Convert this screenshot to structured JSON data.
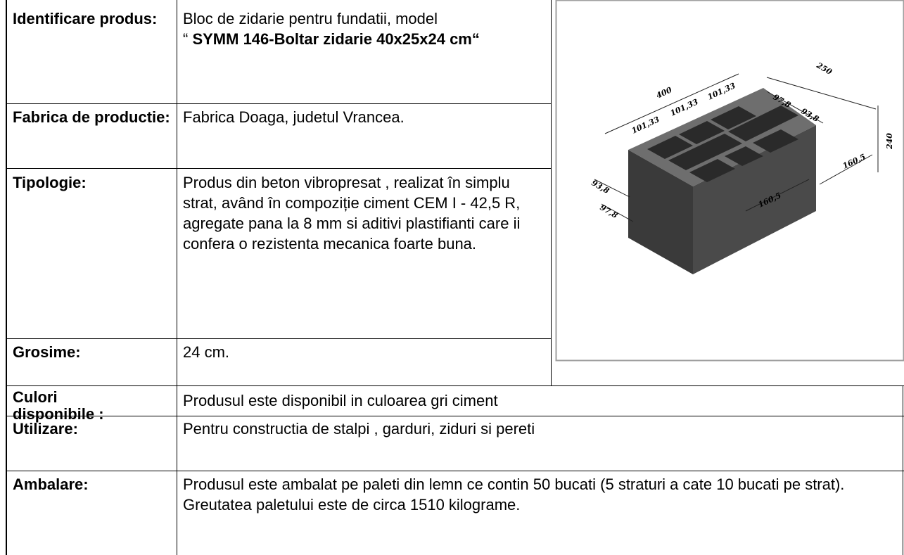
{
  "table": {
    "rows": [
      {
        "label": "Identificare produs:",
        "value": {
          "plain": "Bloc de zidarie pentru fundatii, model",
          "quote": "“",
          "bold": "SYMM 146-Boltar zidarie 40x25x24 cm“"
        }
      },
      {
        "label": "Fabrica de productie:",
        "value": "Fabrica Doaga, judetul Vrancea."
      },
      {
        "label": "Tipologie:",
        "value": "Produs din beton vibropresat , realizat în simplu  strat, având în compoziție ciment CEM I - 42,5 R,  agregate pana la 8 mm si aditivi plastifianti care ii confera o rezistenta mecanica foarte buna."
      },
      {
        "label": "Grosime:",
        "value": "24 cm."
      },
      {
        "label": "Culori disponibile :",
        "value": "Produsul este disponibil in culoarea gri ciment"
      },
      {
        "label": "Utilizare:",
        "value": "Pentru constructia de stalpi , garduri, ziduri si pereti"
      },
      {
        "label": "Ambalare:",
        "value": "Produsul este ambalat pe paleti din lemn ce contin 50 bucati (5 straturi a cate 10 bucati pe strat). Greutatea paletului este de circa 1510 kilograme."
      }
    ]
  },
  "image": {
    "dimensions": [
      "250",
      "400",
      "101,33",
      "101,33",
      "101,33",
      "97,8",
      "93,8",
      "240",
      "160,5",
      "160,5",
      "93,8",
      "97,8"
    ]
  }
}
